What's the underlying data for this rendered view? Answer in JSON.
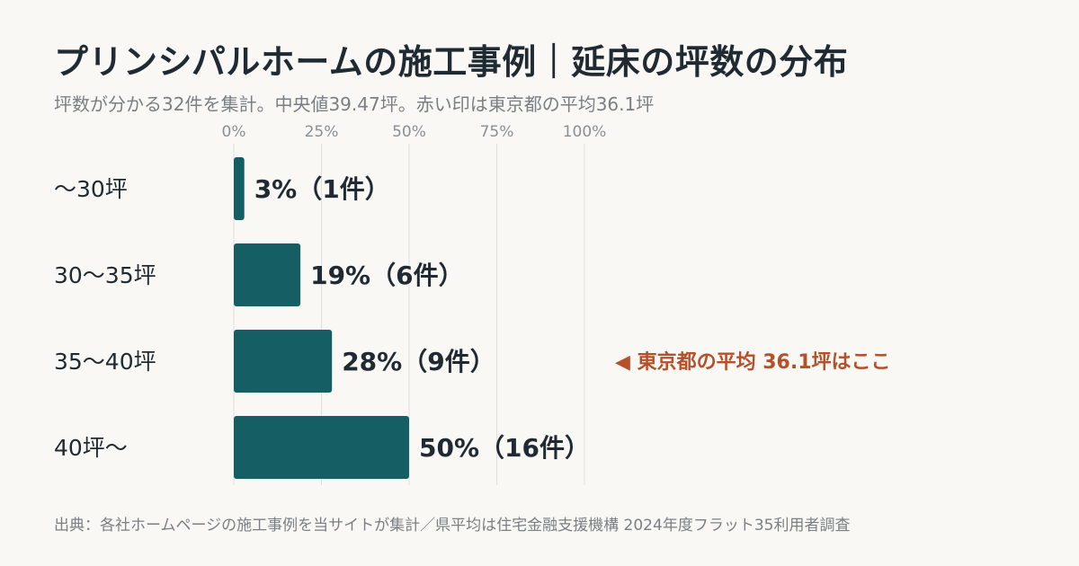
{
  "title": "プリンシパルホームの施工事例｜延床の坪数の分布",
  "subtitle": "坪数が分かる32件を集計。中央値39.47坪。赤い印は東京都の平均36.1坪",
  "source": "出典：各社ホームページの施工事例を当サイトが集計／県平均は住宅金融支援機構 2024年度フラット35利用者調査",
  "colors": {
    "bar": "#155e63",
    "annotation": "#b5502a",
    "grid": "#e2e0dc"
  },
  "chart_data": {
    "type": "bar",
    "orientation": "horizontal",
    "categories": [
      "〜30坪",
      "30〜35坪",
      "35〜40坪",
      "40坪〜"
    ],
    "values": [
      3,
      19,
      28,
      50
    ],
    "counts": [
      1,
      6,
      9,
      16
    ],
    "value_labels": [
      "3%（1件）",
      "19%（6件）",
      "28%（9件）",
      "50%（16件）"
    ],
    "xlim": [
      0,
      100
    ],
    "xticks": [
      0,
      25,
      50,
      75,
      100
    ],
    "xtick_labels": [
      "0%",
      "25%",
      "50%",
      "75%",
      "100%"
    ],
    "grid": true,
    "annotation": {
      "category_index": 2,
      "text": "◀ 東京都の平均 36.1坪はここ"
    }
  }
}
